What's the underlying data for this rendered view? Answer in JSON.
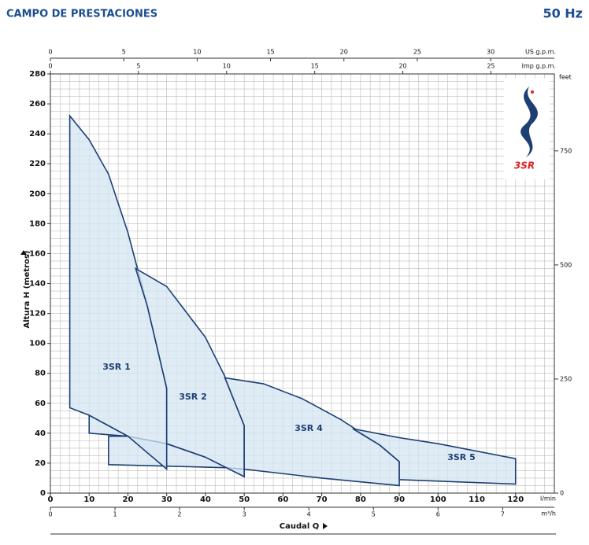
{
  "chart_data": {
    "type": "region",
    "title": "CAMPO DE PRESTACIONES",
    "subtitle": "50 Hz",
    "logo_text": "3SR",
    "x_label": "Caudal Q",
    "y_label": "Altura H (metros)",
    "x_unit": "l/min",
    "xlim": [
      0,
      130
    ],
    "xticks": [
      0,
      10,
      20,
      30,
      40,
      50,
      60,
      70,
      80,
      90,
      100,
      110,
      120
    ],
    "ylim": [
      0,
      280
    ],
    "yticks": [
      0,
      20,
      40,
      60,
      80,
      100,
      120,
      140,
      160,
      180,
      200,
      220,
      240,
      260,
      280
    ],
    "grid": true,
    "xgrid": [
      0,
      2.5,
      5,
      7.5,
      10,
      12.5,
      15,
      17.5,
      20,
      22.5,
      25,
      27.5,
      30,
      32.5,
      35,
      37.5,
      40,
      42.5,
      45,
      47.5,
      50,
      52.5,
      55,
      57.5,
      60,
      62.5,
      65,
      67.5,
      70,
      72.5,
      75,
      77.5,
      80,
      82.5,
      85,
      87.5,
      90,
      92.5,
      95,
      97.5,
      100,
      102.5,
      105,
      107.5,
      110,
      112.5,
      115,
      117.5,
      120,
      122.5,
      125,
      127.5,
      130
    ],
    "ygrid": [
      0,
      5,
      10,
      15,
      20,
      25,
      30,
      35,
      40,
      45,
      50,
      55,
      60,
      65,
      70,
      75,
      80,
      85,
      90,
      95,
      100,
      105,
      110,
      115,
      120,
      125,
      130,
      135,
      140,
      145,
      150,
      155,
      160,
      165,
      170,
      175,
      180,
      185,
      190,
      195,
      200,
      205,
      210,
      215,
      220,
      225,
      230,
      235,
      240,
      245,
      250,
      255,
      260,
      265,
      270,
      275,
      280
    ],
    "top_axes": [
      {
        "label": "US g.p.m.",
        "lim": [
          0,
          34.34
        ],
        "ticks": [
          0,
          5,
          10,
          15,
          20,
          25,
          30
        ]
      },
      {
        "label": "Imp g.p.m.",
        "lim": [
          0,
          28.6
        ],
        "ticks": [
          0,
          5,
          10,
          15,
          20,
          25
        ]
      }
    ],
    "bottom_axis2": {
      "label": "m³/h",
      "lim": [
        0,
        7.8
      ],
      "ticks": [
        0,
        1,
        2,
        3,
        4,
        5,
        6,
        7
      ]
    },
    "y2_label": "feet",
    "y2lim": [
      0,
      918.6
    ],
    "y2ticks": [
      0,
      250,
      500,
      750
    ],
    "color": "#d4e6f3",
    "line_color": "#1d3f74",
    "series": [
      {
        "x": [
          15,
          15,
          30,
          45,
          50,
          50,
          40,
          30,
          20
        ],
        "values": [
          38,
          19,
          18,
          17,
          16,
          11,
          24,
          33,
          38
        ]
      },
      {
        "x": [
          10,
          10,
          20
        ],
        "values": [
          52,
          40,
          38
        ]
      },
      {
        "name": "3SR 1",
        "x": [
          5,
          5,
          10,
          15,
          20,
          25,
          30,
          30,
          25,
          20,
          10
        ],
        "values": [
          57,
          252,
          236,
          213,
          174,
          125,
          70,
          16,
          27,
          38,
          52
        ]
      },
      {
        "name": "3SR 2",
        "x": [
          22,
          30,
          40,
          45,
          50,
          50,
          40,
          30,
          30,
          25
        ],
        "values": [
          150,
          138,
          104,
          78,
          45,
          11,
          24,
          33,
          70,
          125
        ]
      },
      {
        "name": "3SR 4",
        "x": [
          45,
          55,
          65,
          75,
          85,
          90,
          90,
          70,
          50,
          50
        ],
        "values": [
          77,
          73,
          63,
          49,
          32,
          21,
          5,
          10,
          16,
          45
        ]
      },
      {
        "name": "3SR 5",
        "x": [
          78,
          90,
          100,
          110,
          120,
          120,
          90,
          90,
          85
        ],
        "values": [
          43,
          37,
          33,
          28,
          23,
          6,
          9,
          21,
          32
        ]
      }
    ]
  }
}
